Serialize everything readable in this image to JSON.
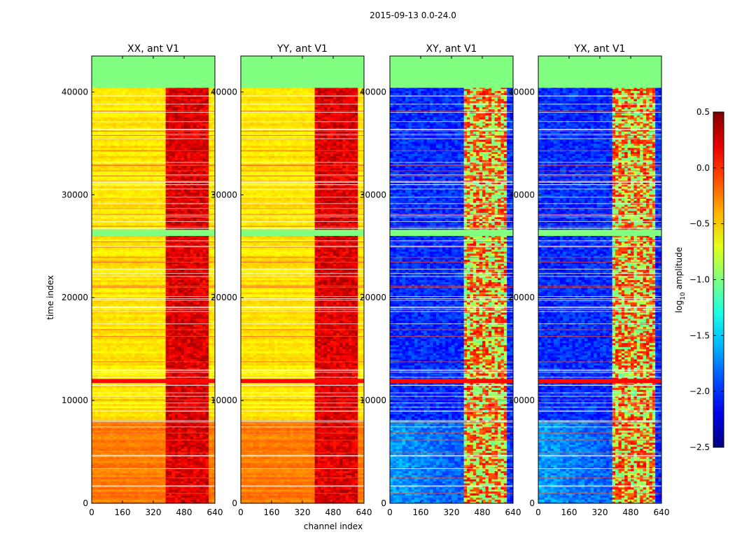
{
  "chart_data": {
    "type": "heatmap",
    "title": "2015-09-13 0.0-24.0",
    "xlabel": "channel index",
    "ylabel": "time index",
    "xlim": [
      0,
      640
    ],
    "ylim": [
      0,
      43500
    ],
    "x_ticks": [
      0,
      160,
      320,
      480,
      640
    ],
    "y_ticks": [
      0,
      10000,
      20000,
      30000,
      40000
    ],
    "panels": [
      {
        "title": "XX, ant V1",
        "kind": "auto"
      },
      {
        "title": "YY, ant V1",
        "kind": "auto"
      },
      {
        "title": "XY, ant V1",
        "kind": "cross"
      },
      {
        "title": "YX, ant V1",
        "kind": "cross"
      }
    ],
    "colorbar": {
      "label": "log10 amplitude",
      "label_main": "log",
      "label_sub": "10",
      "label_rest": " amplitude",
      "colormap": "jet",
      "vmin": -2.5,
      "vmax": 0.5,
      "ticks": [
        0.5,
        0.0,
        -0.5,
        -1.0,
        -1.5,
        -2.0,
        -2.5
      ],
      "tick_labels": [
        "0.5",
        "0.0",
        "−0.5",
        "−1.0",
        "−1.5",
        "−2.0",
        "−2.5"
      ]
    },
    "features": {
      "flagged_time_ranges": [
        [
          40400,
          43500
        ],
        [
          26000,
          26600
        ],
        [
          11700,
          12100
        ]
      ],
      "bright_channel_range": [
        390,
        600
      ],
      "auto_level_high_time": [
        25,
        -0.1
      ],
      "auto_level_low_time": [
        8000,
        -0.15
      ],
      "cross_background_level": -2.0
    }
  }
}
